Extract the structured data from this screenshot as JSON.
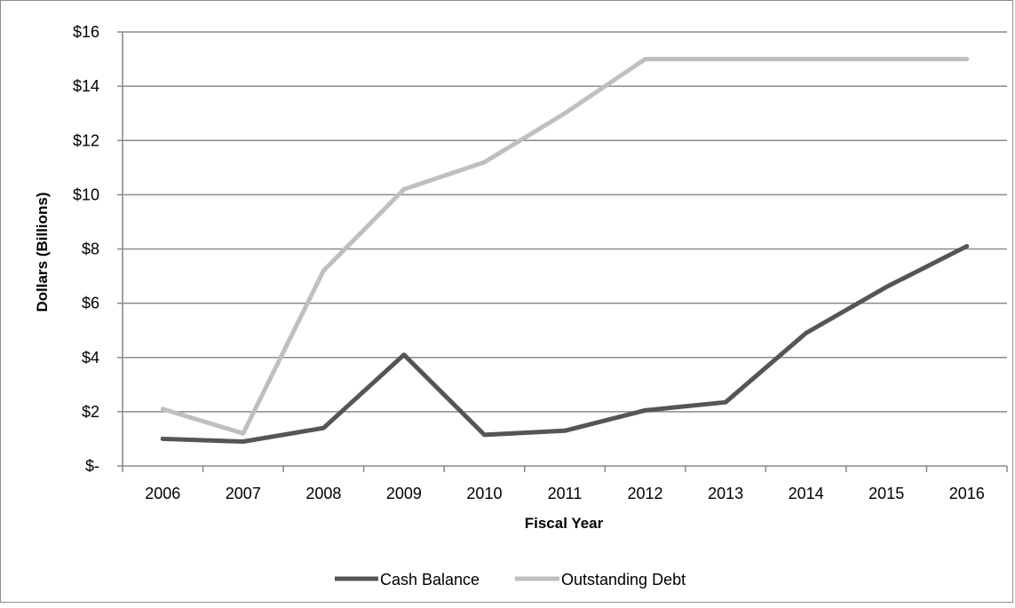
{
  "chart_data": {
    "type": "line",
    "title": "",
    "xlabel": "Fiscal Year",
    "ylabel": "Dollars (Billions)",
    "categories": [
      "2006",
      "2007",
      "2008",
      "2009",
      "2010",
      "2011",
      "2012",
      "2013",
      "2014",
      "2015",
      "2016"
    ],
    "y_ticks": [
      "$-",
      "$2",
      "$4",
      "$6",
      "$8",
      "$10",
      "$12",
      "$14",
      "$16"
    ],
    "ylim": [
      0,
      16
    ],
    "grid": true,
    "legend_position": "bottom",
    "series": [
      {
        "name": "Cash Balance",
        "color": "#555555",
        "values": [
          1.0,
          0.9,
          1.4,
          4.1,
          1.15,
          1.3,
          2.05,
          2.35,
          4.9,
          6.6,
          8.1
        ]
      },
      {
        "name": "Outstanding Debt",
        "color": "#bfbfbf",
        "values": [
          2.1,
          1.2,
          7.2,
          10.2,
          11.2,
          13.0,
          15.0,
          15.0,
          15.0,
          15.0,
          15.0
        ]
      }
    ]
  }
}
